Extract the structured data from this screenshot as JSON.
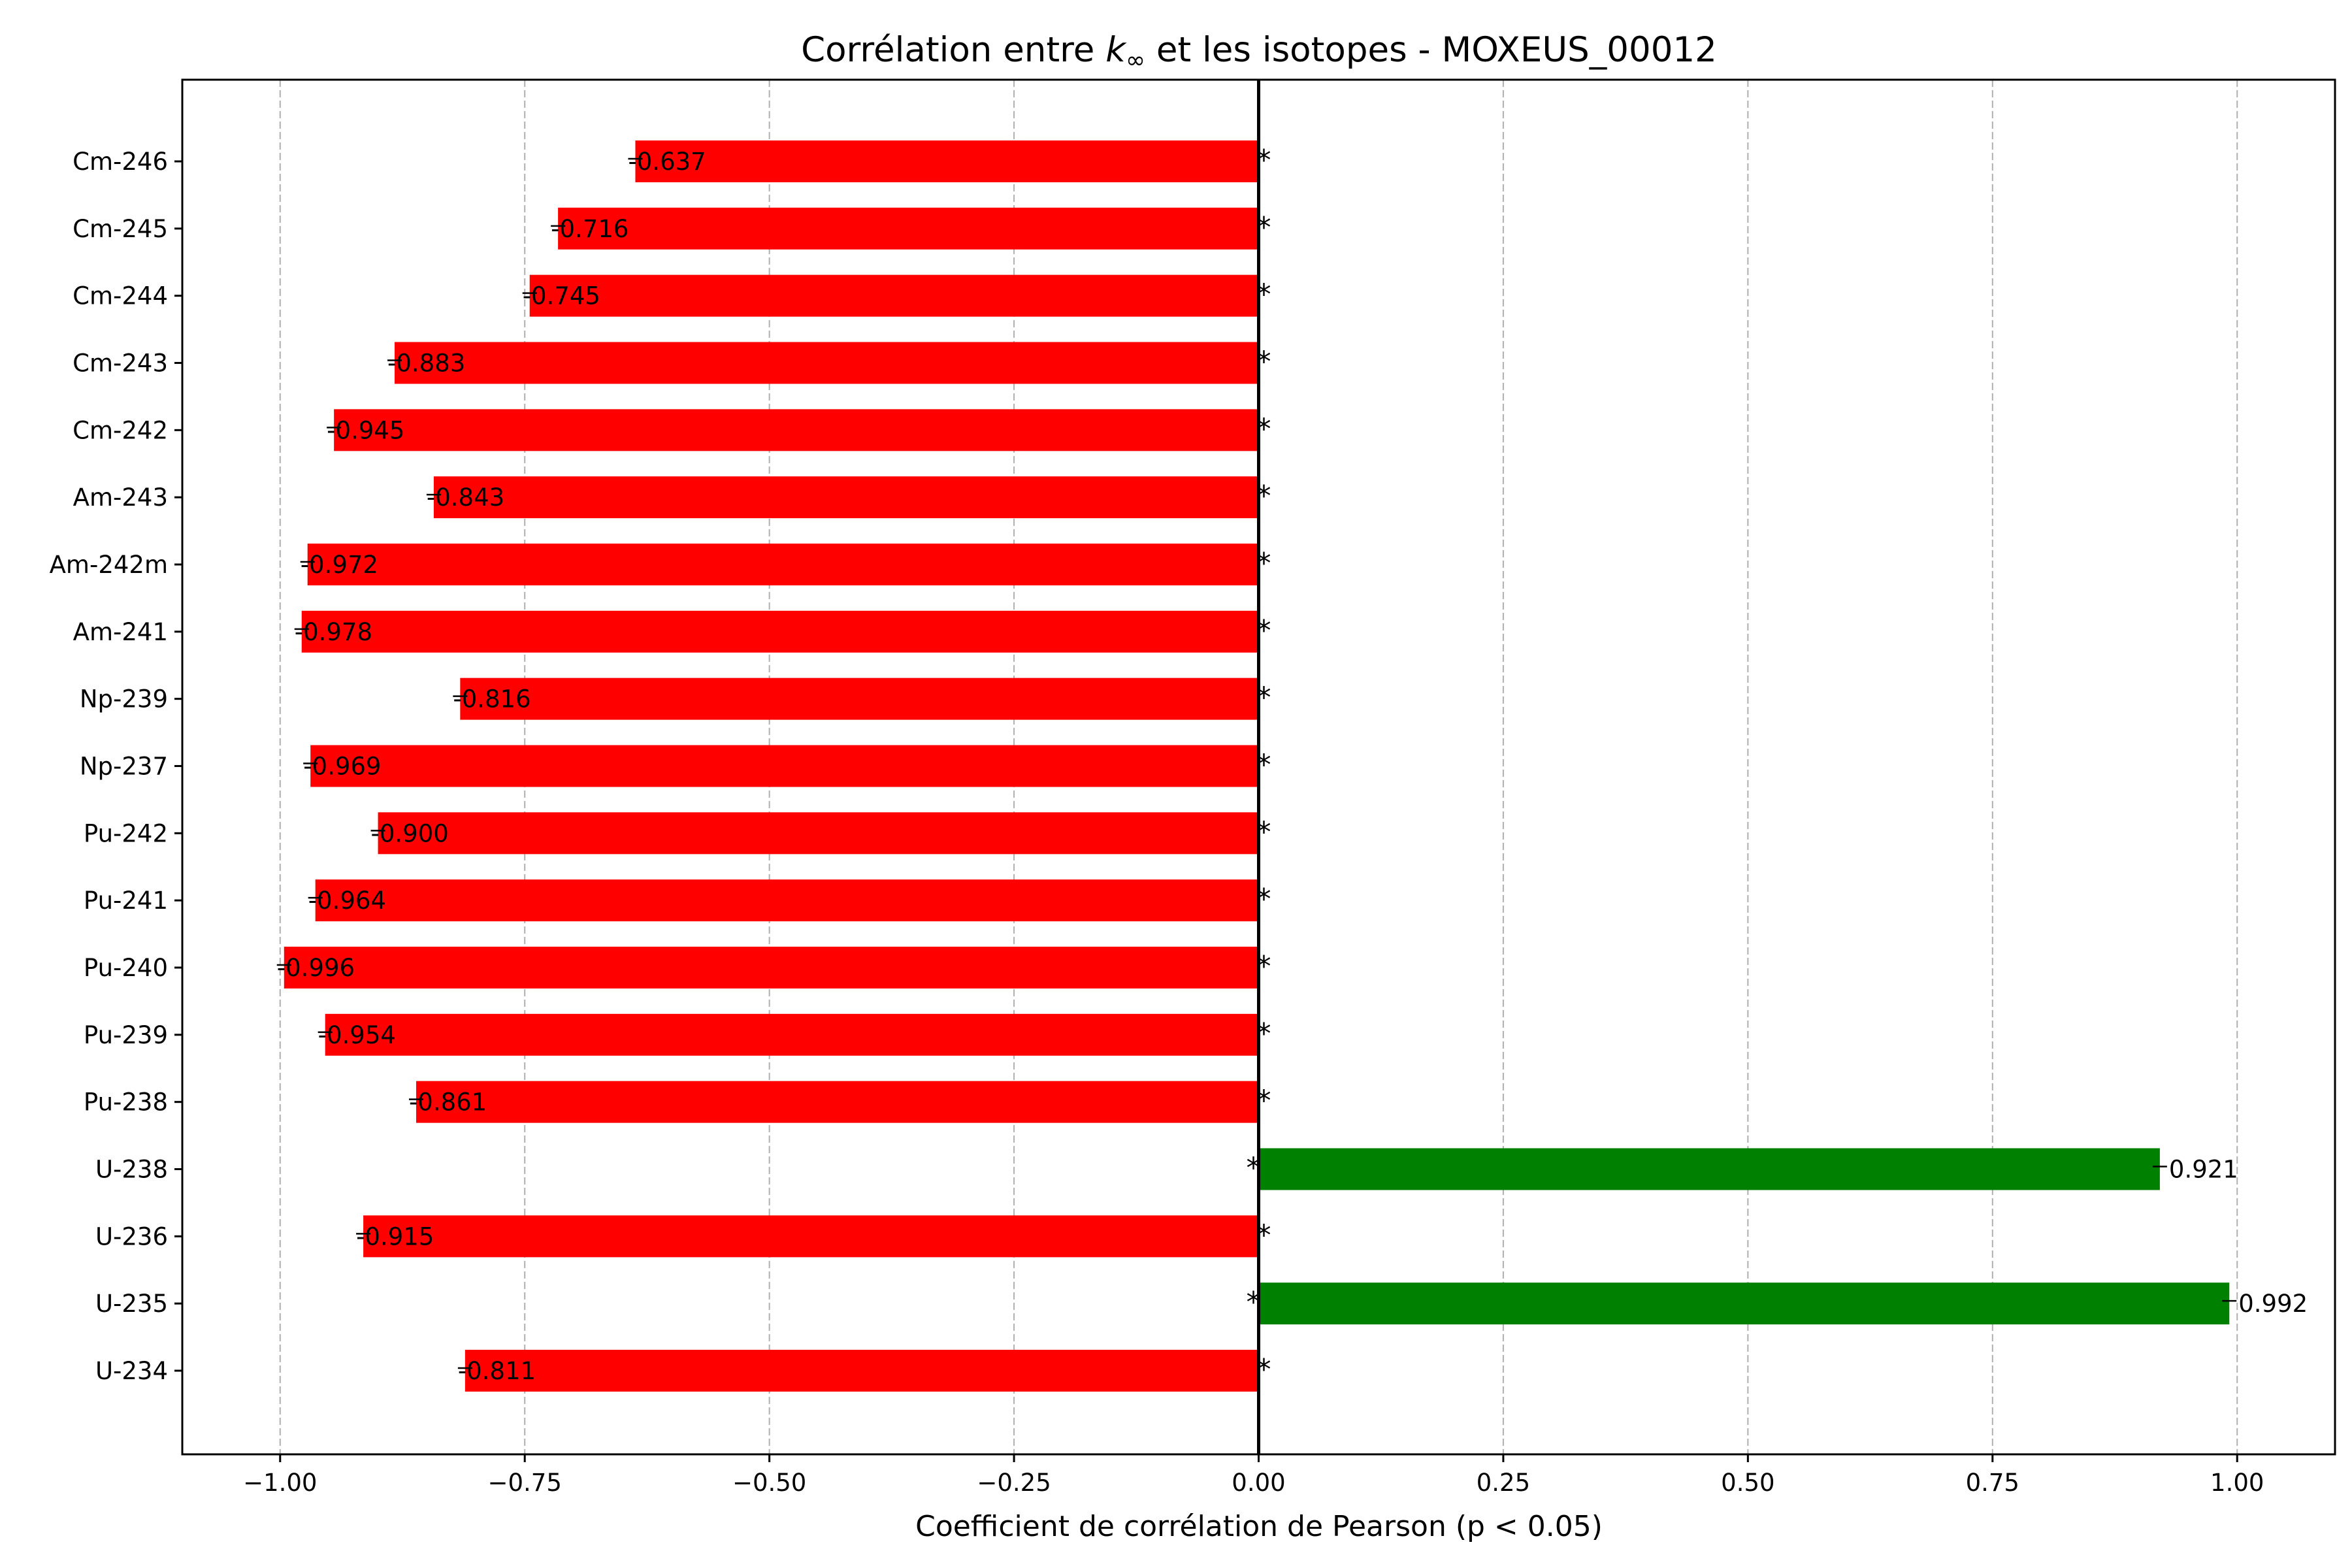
{
  "chart_data": {
    "type": "bar",
    "orientation": "horizontal",
    "title": "Corrélation entre k∞ et les isotopes - MOXEUS_00012",
    "title_parts": {
      "before": "Corrélation entre ",
      "symbol": "k",
      "subscript": "∞",
      "after": " et les isotopes - MOXEUS_00012"
    },
    "xlabel": "Coefficient de corrélation de Pearson (p < 0.05)",
    "ylabel": "",
    "xlim": [
      -1.1,
      1.1
    ],
    "xticks": [
      -1.0,
      -0.75,
      -0.5,
      -0.25,
      0.0,
      0.25,
      0.5,
      0.75,
      1.0
    ],
    "xtick_labels": [
      "−1.00",
      "−0.75",
      "−0.50",
      "−0.25",
      "0.00",
      "0.25",
      "0.50",
      "0.75",
      "1.00"
    ],
    "categories": [
      "U-234",
      "U-235",
      "U-236",
      "U-238",
      "Pu-238",
      "Pu-239",
      "Pu-240",
      "Pu-241",
      "Pu-242",
      "Np-237",
      "Np-239",
      "Am-241",
      "Am-242m",
      "Am-243",
      "Cm-242",
      "Cm-243",
      "Cm-244",
      "Cm-245",
      "Cm-246"
    ],
    "values": [
      -0.811,
      0.992,
      -0.915,
      0.921,
      -0.861,
      -0.954,
      -0.996,
      -0.964,
      -0.9,
      -0.969,
      -0.816,
      -0.978,
      -0.972,
      -0.843,
      -0.945,
      -0.883,
      -0.745,
      -0.716,
      -0.637
    ],
    "value_labels": [
      "-0.811",
      "0.992",
      "-0.915",
      "0.921",
      "-0.861",
      "-0.954",
      "-0.996",
      "-0.964",
      "-0.900",
      "-0.969",
      "-0.816",
      "-0.978",
      "-0.972",
      "-0.843",
      "-0.945",
      "-0.883",
      "-0.745",
      "-0.716",
      "-0.637"
    ],
    "significance_marker": "*",
    "grid": {
      "x": true,
      "y": false,
      "style": "dashed"
    },
    "zero_line": true,
    "colors": {
      "positive": "#008000",
      "negative": "#ff0000",
      "grid": "#b0b0b0",
      "axis": "#000000"
    }
  }
}
